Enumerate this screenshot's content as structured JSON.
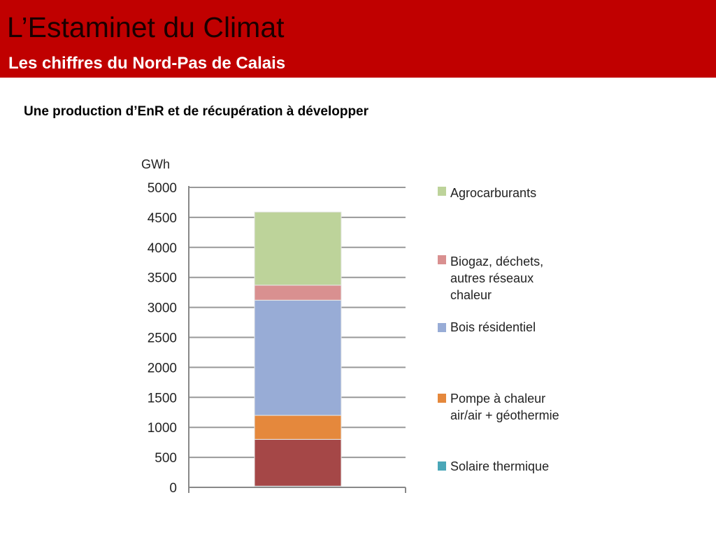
{
  "header": {
    "title": "L’Estaminet du Climat",
    "subtitle": "Les chiffres du Nord-Pas de Calais"
  },
  "section_heading": "Une production d’EnR et de récupération à développer",
  "colors": {
    "header_band": "#c00000",
    "gridline": "#999999",
    "axis": "#888888"
  },
  "chart_data": {
    "type": "bar",
    "stacked": true,
    "categories": [
      ""
    ],
    "ylabel": "GWh",
    "ylim": [
      0,
      5000
    ],
    "yticks": [
      0,
      500,
      1000,
      1500,
      2000,
      2500,
      3000,
      3500,
      4000,
      4500,
      5000
    ],
    "grid": true,
    "legend_position": "right",
    "series": [
      {
        "name": "Solaire thermique",
        "values": [
          20
        ],
        "color": "#4aa7b8"
      },
      {
        "name": "Pompe à chaleur air/air + géothermie",
        "values": [
          780
        ],
        "color": "#a54747",
        "legend_color": "#e5883c"
      },
      {
        "name": "",
        "values": [
          400
        ],
        "color": "#e5883c"
      },
      {
        "name": "Bois résidentiel",
        "values": [
          1920
        ],
        "color": "#98acd6"
      },
      {
        "name": "Biogaz, déchets, autres réseaux chaleur",
        "values": [
          250
        ],
        "color": "#d99090"
      },
      {
        "name": "Agrocarburants",
        "values": [
          1220
        ],
        "color": "#bdd39a"
      }
    ],
    "legend": [
      {
        "lines": [
          "Agrocarburants"
        ],
        "color": "#bdd39a"
      },
      {
        "lines": [
          "Biogaz, déchets,",
          "autres réseaux",
          "chaleur"
        ],
        "color": "#d99090"
      },
      {
        "lines": [
          "Bois résidentiel"
        ],
        "color": "#98acd6"
      },
      {
        "lines": [
          "Pompe à chaleur",
          "air/air + géothermie"
        ],
        "color": "#e5883c"
      },
      {
        "lines": [
          "Solaire thermique"
        ],
        "color": "#4aa7b8"
      }
    ]
  }
}
